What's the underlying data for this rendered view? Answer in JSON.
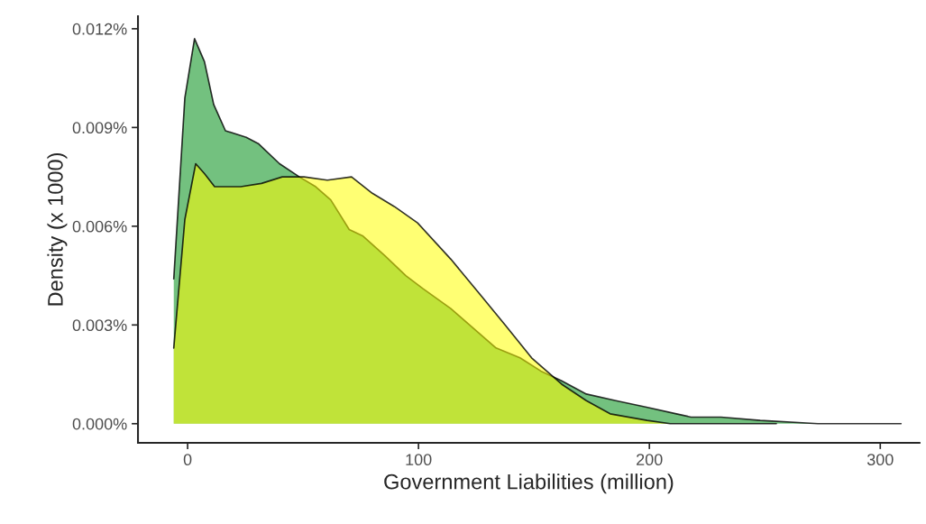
{
  "chart_data": {
    "type": "area",
    "xlabel": "Government Liabilities (million)",
    "ylabel": "Density (x 1000)",
    "xlim": [
      -21.5,
      317
    ],
    "xticks": [
      0,
      100,
      200,
      300
    ],
    "ylim": [
      -0.00058,
      0.01238
    ],
    "yticks": [
      {
        "value": 0,
        "label": "0.000%"
      },
      {
        "value": 0.003,
        "label": "0.003%"
      },
      {
        "value": 0.006,
        "label": "0.006%"
      },
      {
        "value": 0.009,
        "label": "0.009%"
      },
      {
        "value": 0.012,
        "label": "0.012%"
      }
    ],
    "grid": false,
    "legend": false,
    "series": [
      {
        "color": "#008e16",
        "x": [
          -6,
          -1.2,
          3,
          7.3,
          11.3,
          16.4,
          25.4,
          30.8,
          39.8,
          48.4,
          55.5,
          62,
          70,
          76,
          85.5,
          94.5,
          102,
          114,
          133.6,
          144,
          153,
          162,
          172.7,
          185.5,
          198.8,
          211.7,
          218,
          231,
          248,
          273,
          309
        ],
        "values": [
          0.0044,
          0.0099,
          0.0117,
          0.011,
          0.0097,
          0.0089,
          0.0087,
          0.0085,
          0.0079,
          0.0075,
          0.0072,
          0.0068,
          0.0059,
          0.0057,
          0.0051,
          0.0045,
          0.0041,
          0.0035,
          0.0023,
          0.002,
          0.0016,
          0.0013,
          0.0009,
          0.0007,
          0.0005,
          0.0003,
          0.0002,
          0.0002,
          0.0001,
          0,
          0
        ]
      },
      {
        "color": "#ffff00",
        "x": [
          -6,
          -1.2,
          3.5,
          7.3,
          11.7,
          23,
          32,
          41,
          50.4,
          60.5,
          71,
          80,
          89.5,
          99.6,
          114,
          127,
          137.5,
          149,
          162,
          172.7,
          183,
          199,
          209,
          255
        ],
        "values": [
          0.0023,
          0.0062,
          0.0079,
          0.0076,
          0.0072,
          0.0072,
          0.0073,
          0.0075,
          0.0075,
          0.0074,
          0.0075,
          0.007,
          0.0066,
          0.0061,
          0.005,
          0.0039,
          0.003,
          0.002,
          0.0012,
          0.0007,
          0.0003,
          0.0001,
          0,
          0
        ]
      }
    ]
  }
}
